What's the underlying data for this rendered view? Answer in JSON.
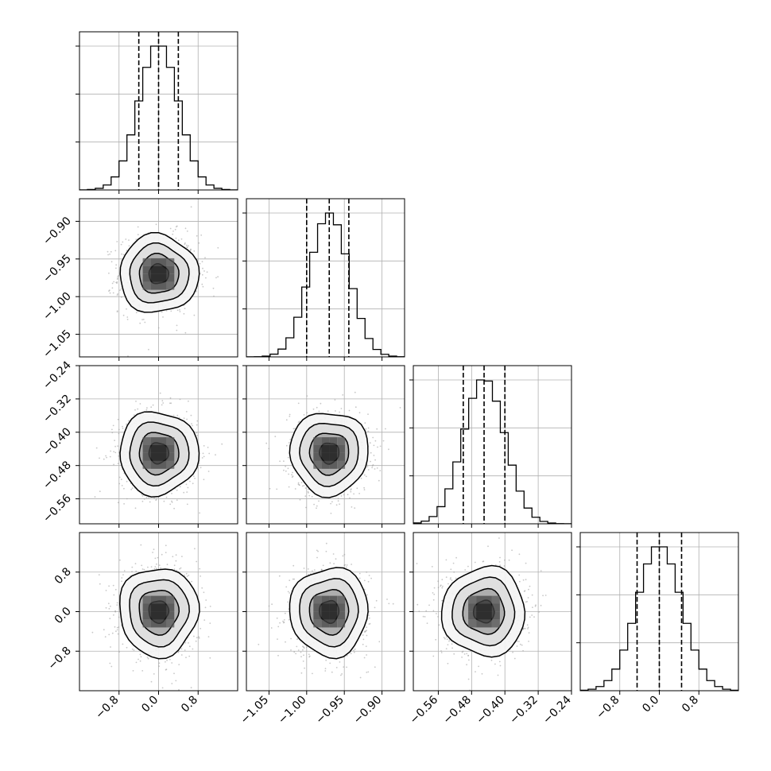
{
  "chart_data": {
    "type": "corner",
    "title": "",
    "grid": true,
    "parameters": [
      {
        "label": "",
        "range": [
          -1.6,
          1.6
        ],
        "ticks": [
          -0.8,
          0.0,
          0.8
        ],
        "tick_labels": [
          "−0.8",
          "0.0",
          "0.8"
        ],
        "mean": 0.0,
        "sigma": 0.4,
        "quantiles": [
          -0.4,
          0.0,
          0.4
        ]
      },
      {
        "label": "",
        "range": [
          -1.08,
          -0.87
        ],
        "ticks": [
          -1.05,
          -1.0,
          -0.95,
          -0.9
        ],
        "tick_labels": [
          "−1.05",
          "−1.00",
          "−0.95",
          "−0.90"
        ],
        "mean": -0.97,
        "sigma": 0.026,
        "quantiles": [
          -1.0,
          -0.97,
          -0.944
        ]
      },
      {
        "label": "",
        "range": [
          -0.62,
          -0.24
        ],
        "ticks": [
          -0.56,
          -0.48,
          -0.4,
          -0.32,
          -0.24
        ],
        "tick_labels": [
          "−0.56",
          "−0.48",
          "−0.40",
          "−0.32",
          "−0.24"
        ],
        "mean": -0.45,
        "sigma": 0.05,
        "quantiles": [
          -0.5,
          -0.45,
          -0.4
        ]
      },
      {
        "label": "",
        "range": [
          -1.6,
          1.6
        ],
        "ticks": [
          -0.8,
          0.0,
          0.8
        ],
        "tick_labels": [
          "−0.8",
          "0.0",
          "0.8"
        ],
        "mean": 0.0,
        "sigma": 0.45,
        "quantiles": [
          -0.45,
          0.0,
          0.45
        ]
      }
    ],
    "histogram_bins": 20,
    "contour_levels_sigma": [
      0.5,
      1.0,
      1.5,
      2.0
    ],
    "colors": {
      "line": "#000000",
      "grid": "#b0b0b0",
      "points": "#9a9a9a",
      "density_dark": "#000000",
      "density_light": "#ffffff"
    }
  }
}
